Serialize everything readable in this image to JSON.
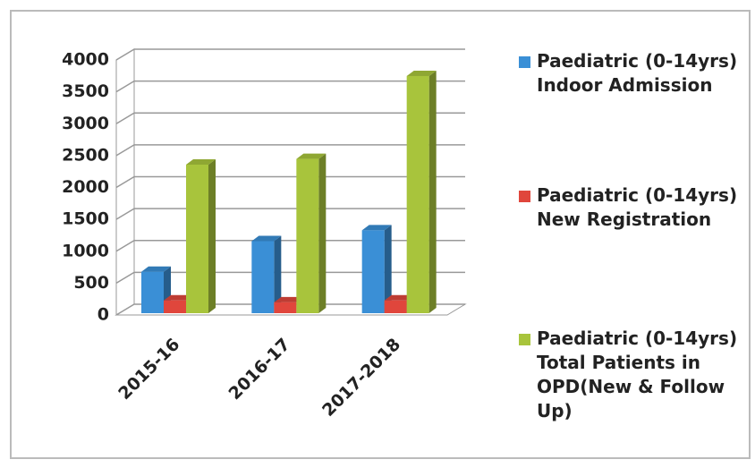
{
  "chart_data": {
    "type": "bar3d",
    "categories": [
      "2015-16",
      "2016-17",
      "2017-2018"
    ],
    "series": [
      {
        "name": "Paediatric (0-14yrs) Indoor Admission",
        "color": "#3a8fd6",
        "values": [
          650,
          1130,
          1300
        ]
      },
      {
        "name": "Paediatric (0-14yrs) New Registration",
        "color": "#e0463c",
        "values": [
          200,
          170,
          200
        ]
      },
      {
        "name": "Paediatric (0-14yrs) Total Patients in OPD(New & Follow Up)",
        "color": "#a8c43c",
        "values": [
          2330,
          2420,
          3720
        ]
      }
    ],
    "ylim": [
      0,
      4000
    ],
    "yticks": [
      0,
      500,
      1000,
      1500,
      2000,
      2500,
      3000,
      3500,
      4000
    ],
    "grid": true,
    "legend": "right"
  }
}
